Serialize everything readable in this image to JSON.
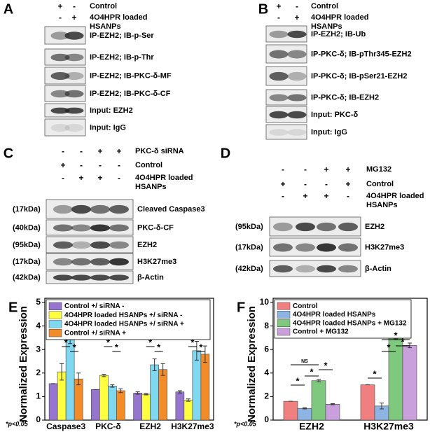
{
  "panels": [
    {
      "letter": "A",
      "header": [
        {
          "signs": [
            "+",
            "-"
          ],
          "label": "Control"
        },
        {
          "signs": [
            "-",
            "+"
          ],
          "label": "4O4HPR loaded HSANPs"
        }
      ],
      "rows": [
        {
          "label": "IP-EZH2; IB-p-Ser"
        },
        {
          "label": "IP-EZH2; IB-p-Thr"
        },
        {
          "label": "IP-EZH2; IB-PKC-δ-MF"
        },
        {
          "label": "IP-EZH2; IB-PKC-δ-CF"
        },
        {
          "label": "Input: EZH2"
        },
        {
          "label": "Input: IgG"
        }
      ]
    },
    {
      "letter": "B",
      "header": [
        {
          "signs": [
            "+",
            "-"
          ],
          "label": "Control"
        },
        {
          "signs": [
            "-",
            "+"
          ],
          "label": "4O4HPR loaded HSANPs"
        }
      ],
      "rows": [
        {
          "label": "IP-EZH2; IB-Ub"
        },
        {
          "label": "IP-PKC-δ; IB-pThr345-EZH2"
        },
        {
          "label": "IP-PKC-δ; IB-pSer21-EZH2"
        },
        {
          "label": "IP-PKC-δ; IB-EZH2"
        },
        {
          "label": "Input: PKC-δ"
        },
        {
          "label": "Input: IgG"
        }
      ]
    },
    {
      "letter": "C",
      "header": [
        {
          "signs": [
            "-",
            "-",
            "+",
            "+"
          ],
          "label": "PKC-δ siRNA"
        },
        {
          "signs": [
            "+",
            "-",
            "-",
            "-"
          ],
          "label": "Control"
        },
        {
          "signs": [
            "-",
            "+",
            "+",
            "-"
          ],
          "label": "4O4HPR loaded HSANPs"
        }
      ],
      "rows": [
        {
          "kda": "(17kDa)",
          "label": "Cleaved Caspase3"
        },
        {
          "kda": "(40kDa)",
          "label": "PKC-δ-CF"
        },
        {
          "kda": "(95kDa)",
          "label": "EZH2"
        },
        {
          "kda": "(17kDa)",
          "label": "H3K27me3"
        },
        {
          "kda": "(42kDa)",
          "label": "β-Actin"
        }
      ]
    },
    {
      "letter": "D",
      "header": [
        {
          "signs": [
            "-",
            "-",
            "+",
            "+"
          ],
          "label": "MG132"
        },
        {
          "signs": [
            "+",
            "-",
            "-",
            "+"
          ],
          "label": "Control"
        },
        {
          "signs": [
            "-",
            "+",
            "+",
            "-"
          ],
          "label": "4O4HPR loaded HSANPs"
        }
      ],
      "rows": [
        {
          "kda": "(95kDa)",
          "label": "EZH2"
        },
        {
          "kda": "(17kDa)",
          "label": "H3K27me3"
        },
        {
          "kda": "(42kDa)",
          "label": "β-Actin"
        }
      ]
    }
  ],
  "chart_data": [
    {
      "type": "bar",
      "letter": "E",
      "y_label": "Normalized Expression",
      "categories": [
        "Caspase3",
        "PKC-δ",
        "EZH2",
        "H3K27me3"
      ],
      "series": [
        {
          "name": "Control +/ siRNA -",
          "color": "#9575cd",
          "values": [
            1.55,
            1.3,
            1.15,
            1.2
          ],
          "errors": [
            0,
            0,
            0.05,
            0.05
          ]
        },
        {
          "name": "4O4HPR loaded HSANPs +/ siRNA -",
          "color": "#ffff40",
          "values": [
            2.05,
            1.9,
            1.1,
            0.85
          ],
          "errors": [
            0.35,
            0.05,
            0.03,
            0.05
          ]
        },
        {
          "name": "4O4HPR loaded HSANPs +/ siRNA +",
          "color": "#80d8f0",
          "values": [
            3.85,
            1.45,
            2.35,
            2.95
          ],
          "errors": [
            0.6,
            0.05,
            0.25,
            0.4
          ]
        },
        {
          "name": "Control +/ siRNA +",
          "color": "#f28c28",
          "values": [
            1.75,
            1.25,
            2.15,
            2.8
          ],
          "errors": [
            0.25,
            0.08,
            0.25,
            0.35
          ]
        }
      ],
      "ylim": [
        0,
        5
      ],
      "yticks": [
        0,
        1,
        2,
        3,
        4,
        5
      ],
      "annotations": [
        "*p<0.05",
        "*",
        "*",
        "*",
        "*",
        "*",
        "*",
        "*",
        "*"
      ]
    },
    {
      "type": "bar",
      "letter": "F",
      "y_label": "Normalized Expression",
      "categories": [
        "EZH2",
        "H3K27me3"
      ],
      "series": [
        {
          "name": "Control",
          "color": "#f08080",
          "values": [
            1.6,
            3.0
          ],
          "errors": [
            0,
            0
          ]
        },
        {
          "name": "4O4HPR loaded HSANPs",
          "color": "#8db4e2",
          "values": [
            1.0,
            1.2
          ],
          "errors": [
            0.05,
            0.25
          ]
        },
        {
          "name": "4O4HPR loaded HSANPs + MG132",
          "color": "#7fc97f",
          "values": [
            3.35,
            7.2
          ],
          "errors": [
            0.1,
            0.3
          ]
        },
        {
          "name": "Control + MG132",
          "color": "#c9a0dc",
          "values": [
            1.35,
            6.35
          ],
          "errors": [
            0.05,
            0.2
          ]
        }
      ],
      "ylim": [
        0,
        10
      ],
      "yticks": [
        0,
        2,
        4,
        6,
        8,
        10
      ],
      "annotations": [
        "*p<0.05",
        "NS",
        "*",
        "*",
        "*",
        "*",
        "*",
        "*",
        "*"
      ]
    }
  ]
}
